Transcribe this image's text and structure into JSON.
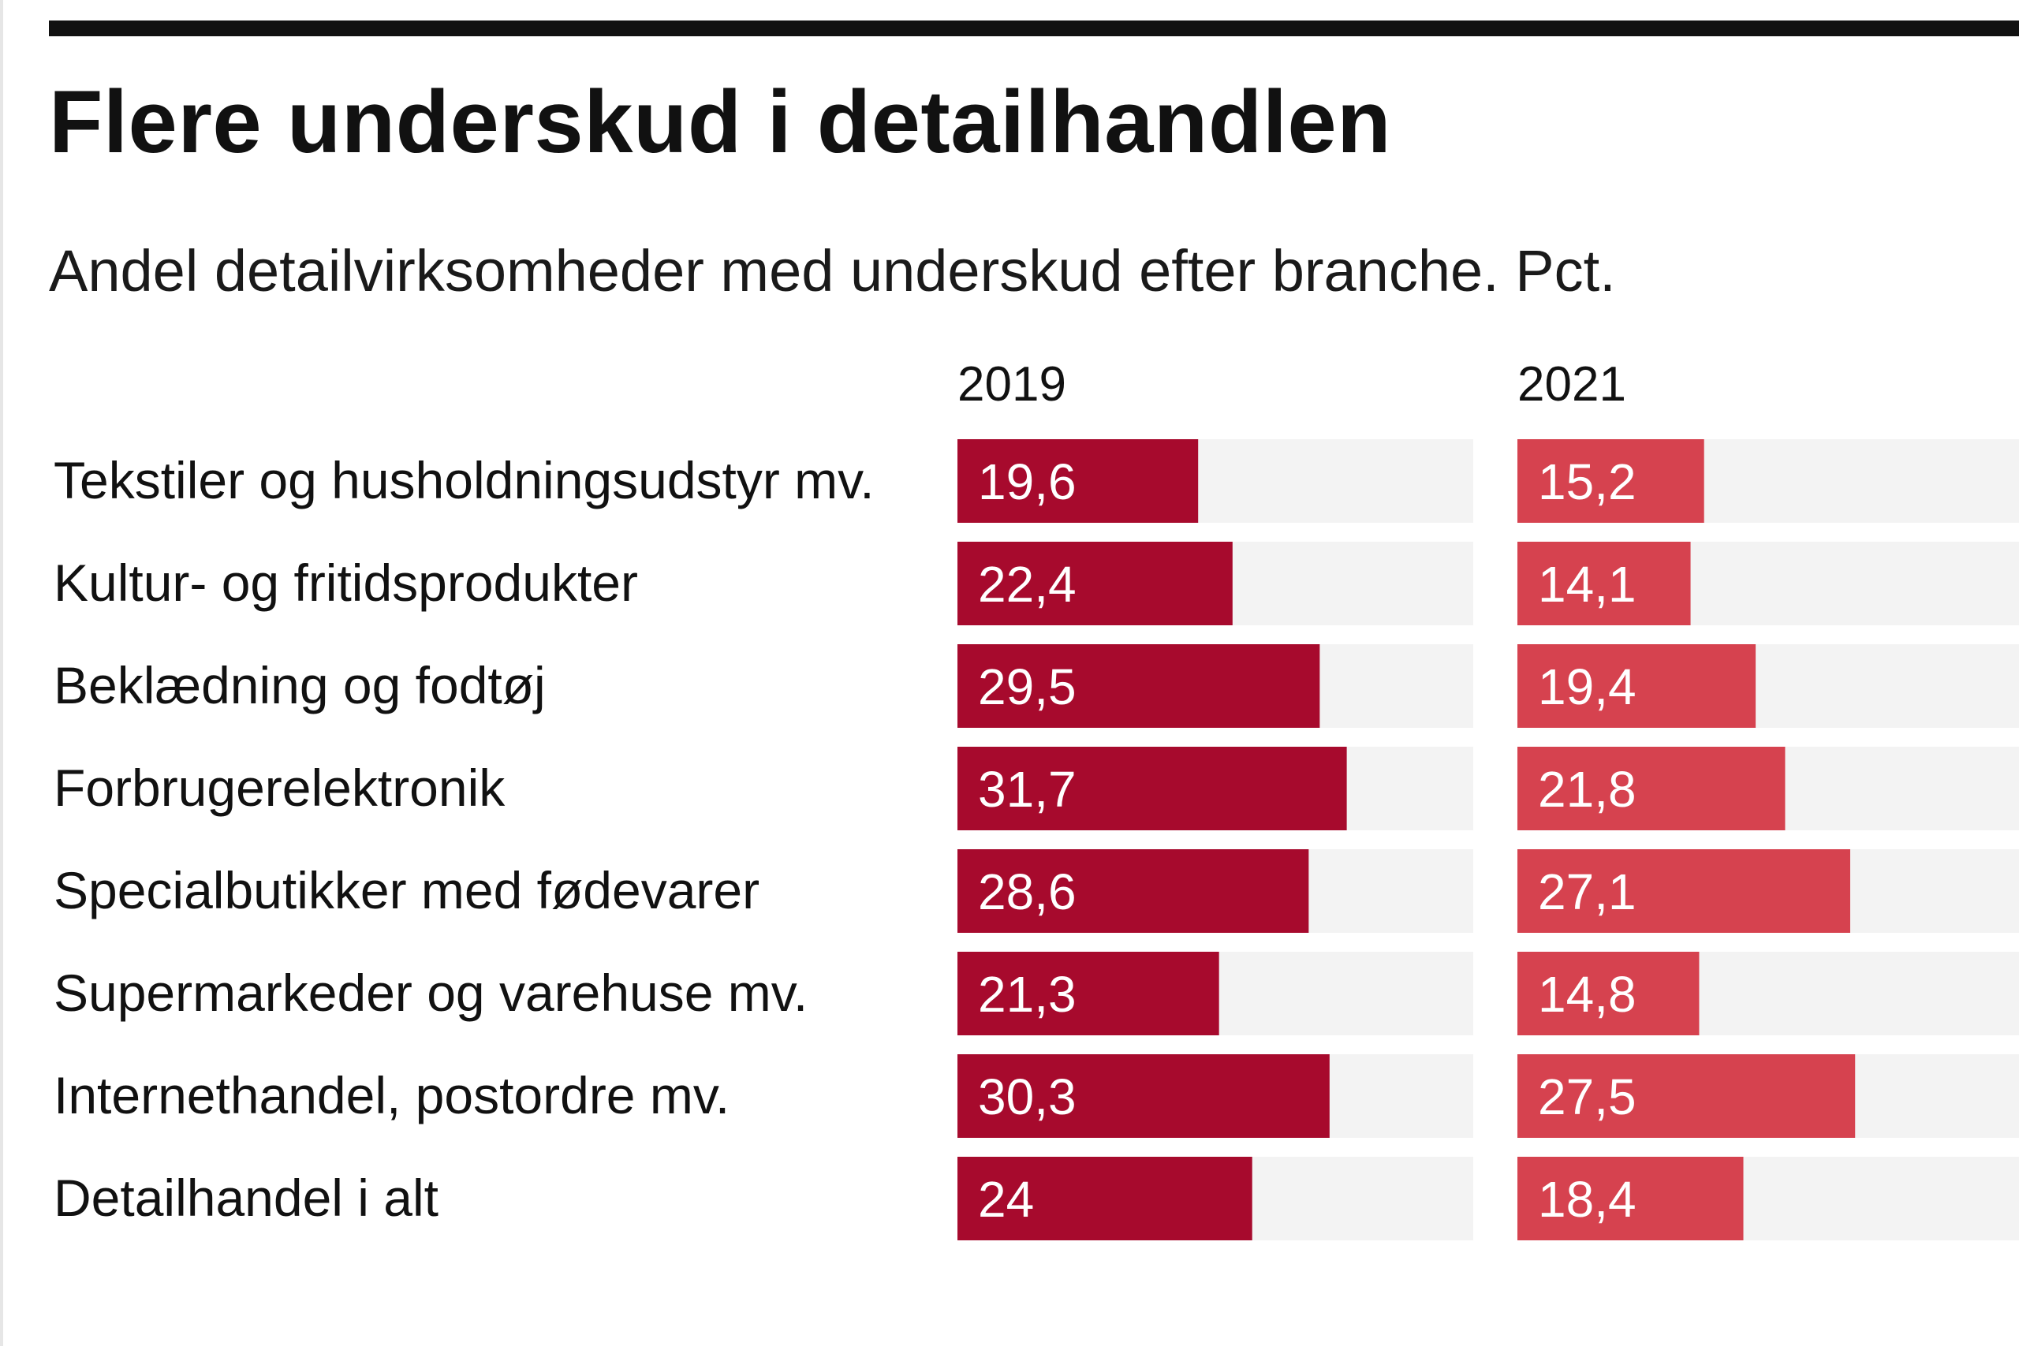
{
  "title": "Flere underskud i detailhandlen",
  "subtitle": "Andel detailvirksomheder med underskud efter branche. Pct.",
  "colors": {
    "series_2019": "#a70a2d",
    "series_2021": "#d6424f",
    "track": "#f3f3f3",
    "text": "#111111",
    "label_on_bar": "#ffffff"
  },
  "chart_data": {
    "type": "bar",
    "orientation": "horizontal",
    "layout": "small-multiples",
    "categories": [
      "Tekstiler og husholdningsudstyr mv.",
      "Kultur- og fritidsprodukter",
      "Beklædning og fodtøj",
      "Forbrugerelektronik",
      "Specialbutikker med fødevarer",
      "Supermarkeder og varehuse mv.",
      "Internethandel, postordre mv.",
      "Detailhandel i alt"
    ],
    "series": [
      {
        "name": "2019",
        "values": [
          19.6,
          22.4,
          29.5,
          31.7,
          28.6,
          21.3,
          30.3,
          24
        ],
        "labels": [
          "19,6",
          "22,4",
          "29,5",
          "31,7",
          "28,6",
          "21,3",
          "30,3",
          "24"
        ]
      },
      {
        "name": "2021",
        "values": [
          15.2,
          14.1,
          19.4,
          21.8,
          27.1,
          14.8,
          27.5,
          18.4
        ],
        "labels": [
          "15,2",
          "14,1",
          "19,4",
          "21,8",
          "27,1",
          "14,8",
          "27,5",
          "18,4"
        ]
      }
    ],
    "xlim": [
      0,
      42
    ],
    "grid": false,
    "legend": "none"
  }
}
